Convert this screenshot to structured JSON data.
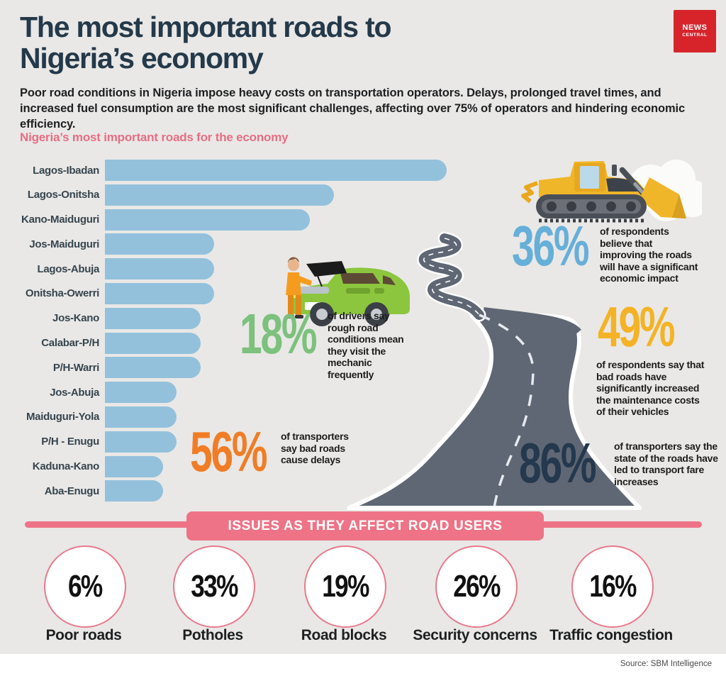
{
  "header": {
    "title_line1": "The most important roads to",
    "title_line2": "Nigeria’s economy",
    "logo_line1": "NEWS",
    "logo_line2": "CENTRAL",
    "intro": "Poor road conditions in Nigeria impose heavy costs on transportation operators. Delays, prolonged travel times, and increased fuel consumption are the most significant challenges, affecting over 75% of operators and hindering economic efficiency."
  },
  "chart_data": {
    "type": "bar",
    "orientation": "horizontal",
    "title": "Nigeria’s most important roads for the economy",
    "categories": [
      "Lagos-Ibadan",
      "Lagos-Onitsha",
      "Kano-Maiduguri",
      "Jos-Maiduguri",
      "Lagos-Abuja",
      "Onitsha-Owerri",
      "Jos-Kano",
      "Calabar-P/H",
      "P/H-Warri",
      "Jos-Abuja",
      "Maiduguri-Yola",
      "P/H - Enugu",
      "Kaduna-Kano",
      "Aba-Enugu"
    ],
    "values_relative": [
      100,
      67,
      60,
      32,
      32,
      32,
      28,
      28,
      28,
      21,
      21,
      21,
      17,
      17
    ],
    "note": "no numeric axis shown; values are relative bar lengths (Lagos-Ibadan = 100)",
    "bar_color": "#93c1dc",
    "grid": false,
    "legend": false
  },
  "stats": [
    {
      "value": "18%",
      "color": "#7cc17d",
      "caption": "of drivers say rough road conditions mean they visit the mechanic frequently"
    },
    {
      "value": "56%",
      "color": "#f07d26",
      "caption": "of transporters say bad roads cause delays"
    },
    {
      "value": "36%",
      "color": "#66afd9",
      "caption": "of respondents believe that improving the roads will have a significant economic impact"
    },
    {
      "value": "49%",
      "color": "#f4b326",
      "caption": "of respondents say that bad roads have significantly increased the maintenance costs of their vehicles"
    },
    {
      "value": "86%",
      "color": "#24384e",
      "caption": "of transporters say the state of the roads have led to transport fare increases"
    }
  ],
  "issues_banner": "ISSUES AS THEY AFFECT ROAD USERS",
  "issues": [
    {
      "value": "6%",
      "label": "Poor roads"
    },
    {
      "value": "33%",
      "label": "Potholes"
    },
    {
      "value": "19%",
      "label": "Road blocks"
    },
    {
      "value": "26%",
      "label": "Security concerns"
    },
    {
      "value": "16%",
      "label": "Traffic congestion"
    }
  ],
  "source": "Source: SBM Intelligence",
  "colors": {
    "background": "#e9e8e6",
    "title": "#24394a",
    "accent_pink": "#ee7386",
    "heading_pink": "#e76e84",
    "bar_blue": "#93c1dc",
    "logo_red": "#d7242b",
    "road_gray": "#5f6774",
    "stat_green": "#7cc17d",
    "stat_orange": "#f07d26",
    "stat_blue": "#66afd9",
    "stat_yellow": "#f4b326",
    "stat_navy": "#24384e"
  },
  "icons": [
    "news-central-logo",
    "bulldozer-icon",
    "cloud-icon",
    "mechanic-car-icon",
    "winding-road-illustration"
  ]
}
